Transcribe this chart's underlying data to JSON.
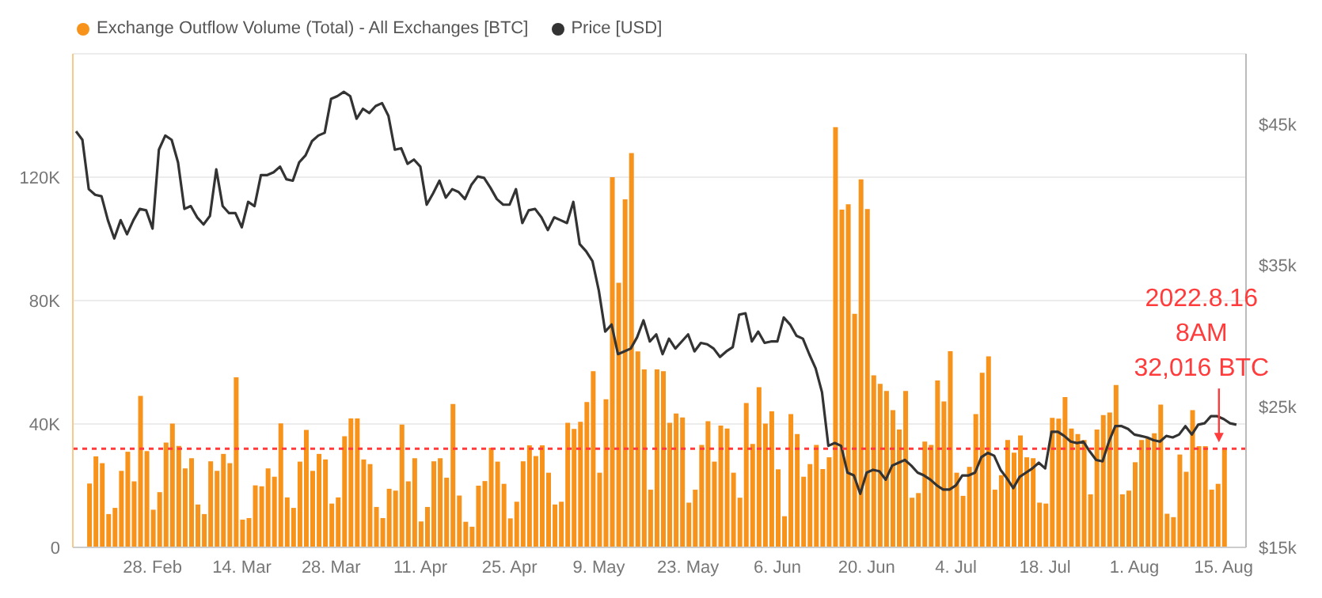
{
  "chart_data": {
    "type": "bar",
    "legend": "top left",
    "grid": "y",
    "xlim": [
      "2022-02-15T12:00",
      "2022-08-18T12:00"
    ],
    "xticks": [
      {
        "value": "2022-02-28",
        "label": "28. Feb"
      },
      {
        "value": "2022-03-14",
        "label": "14. Mar"
      },
      {
        "value": "2022-03-28",
        "label": "28. Mar"
      },
      {
        "value": "2022-04-11",
        "label": "11. Apr"
      },
      {
        "value": "2022-04-25",
        "label": "25. Apr"
      },
      {
        "value": "2022-05-09",
        "label": "9. May"
      },
      {
        "value": "2022-05-23",
        "label": "23. May"
      },
      {
        "value": "2022-06-06",
        "label": "6. Jun"
      },
      {
        "value": "2022-06-20",
        "label": "20. Jun"
      },
      {
        "value": "2022-07-04",
        "label": "4. Jul"
      },
      {
        "value": "2022-07-18",
        "label": "18. Jul"
      },
      {
        "value": "2022-08-01",
        "label": "1. Aug"
      },
      {
        "value": "2022-08-15",
        "label": "15. Aug"
      }
    ],
    "ylim": [
      0,
      160000
    ],
    "yticks": [
      0,
      {
        "value": 40000,
        "label": "40K"
      },
      {
        "value": 80000,
        "label": "80K"
      },
      {
        "value": 120000,
        "label": "120K"
      }
    ],
    "y2lim": [
      15000,
      50000
    ],
    "y2ticks": [
      {
        "value": 15000,
        "label": "$15k"
      },
      {
        "value": 25000,
        "label": "$25k"
      },
      {
        "value": 35000,
        "label": "$35k"
      },
      {
        "value": 45000,
        "label": "$45k"
      }
    ],
    "ref_lines": [
      {
        "axis": "y",
        "value": 32016,
        "color": "#ff3b3b",
        "line_style": "dotted"
      }
    ],
    "annotations": [
      {
        "text": "2022.8.16\n8AM\n32,016 BTC",
        "x": "2022-08-15",
        "y": 32016
      }
    ],
    "series": [
      {
        "name": "Exchange Outflow Volume (Total) - All Exchanges [BTC]",
        "color": "#f7931a",
        "axis": "y",
        "x": [
          "2022-02-18",
          "2022-02-19",
          "2022-02-20",
          "2022-02-21",
          "2022-02-22",
          "2022-02-23",
          "2022-02-24",
          "2022-02-25",
          "2022-02-26",
          "2022-02-27",
          "2022-02-28",
          "2022-03-01",
          "2022-03-02",
          "2022-03-03",
          "2022-03-04",
          "2022-03-05",
          "2022-03-06",
          "2022-03-07",
          "2022-03-08",
          "2022-03-09",
          "2022-03-10",
          "2022-03-11",
          "2022-03-12",
          "2022-03-13",
          "2022-03-14",
          "2022-03-15",
          "2022-03-16",
          "2022-03-17",
          "2022-03-18",
          "2022-03-19",
          "2022-03-20",
          "2022-03-21",
          "2022-03-22",
          "2022-03-23",
          "2022-03-24",
          "2022-03-25",
          "2022-03-26",
          "2022-03-27",
          "2022-03-28",
          "2022-03-29",
          "2022-03-30",
          "2022-03-31",
          "2022-04-01",
          "2022-04-02",
          "2022-04-03",
          "2022-04-04",
          "2022-04-05",
          "2022-04-06",
          "2022-04-07",
          "2022-04-08",
          "2022-04-09",
          "2022-04-10",
          "2022-04-11",
          "2022-04-12",
          "2022-04-13",
          "2022-04-14",
          "2022-04-15",
          "2022-04-16",
          "2022-04-17",
          "2022-04-18",
          "2022-04-19",
          "2022-04-20",
          "2022-04-21",
          "2022-04-22",
          "2022-04-23",
          "2022-04-24",
          "2022-04-25",
          "2022-04-26",
          "2022-04-27",
          "2022-04-28",
          "2022-04-29",
          "2022-04-30",
          "2022-05-01",
          "2022-05-02",
          "2022-05-03",
          "2022-05-04",
          "2022-05-05",
          "2022-05-06",
          "2022-05-07",
          "2022-05-08",
          "2022-05-09",
          "2022-05-10",
          "2022-05-11",
          "2022-05-12",
          "2022-05-13",
          "2022-05-14",
          "2022-05-15",
          "2022-05-16",
          "2022-05-17",
          "2022-05-18",
          "2022-05-19",
          "2022-05-20",
          "2022-05-21",
          "2022-05-22",
          "2022-05-23",
          "2022-05-24",
          "2022-05-25",
          "2022-05-26",
          "2022-05-27",
          "2022-05-28",
          "2022-05-29",
          "2022-05-30",
          "2022-05-31",
          "2022-06-01",
          "2022-06-02",
          "2022-06-03",
          "2022-06-04",
          "2022-06-05",
          "2022-06-06",
          "2022-06-07",
          "2022-06-08",
          "2022-06-09",
          "2022-06-10",
          "2022-06-11",
          "2022-06-12",
          "2022-06-13",
          "2022-06-14",
          "2022-06-15",
          "2022-06-16",
          "2022-06-17",
          "2022-06-18",
          "2022-06-19",
          "2022-06-20",
          "2022-06-21",
          "2022-06-22",
          "2022-06-23",
          "2022-06-24",
          "2022-06-25",
          "2022-06-26",
          "2022-06-27",
          "2022-06-28",
          "2022-06-29",
          "2022-06-30",
          "2022-07-01",
          "2022-07-02",
          "2022-07-03",
          "2022-07-04",
          "2022-07-05",
          "2022-07-06",
          "2022-07-07",
          "2022-07-08",
          "2022-07-09",
          "2022-07-10",
          "2022-07-11",
          "2022-07-12",
          "2022-07-13",
          "2022-07-14",
          "2022-07-15",
          "2022-07-16",
          "2022-07-17",
          "2022-07-18",
          "2022-07-19",
          "2022-07-20",
          "2022-07-21",
          "2022-07-22",
          "2022-07-23",
          "2022-07-24",
          "2022-07-25",
          "2022-07-26",
          "2022-07-27",
          "2022-07-28",
          "2022-07-29",
          "2022-07-30",
          "2022-07-31",
          "2022-08-01",
          "2022-08-02",
          "2022-08-03",
          "2022-08-04",
          "2022-08-05",
          "2022-08-06",
          "2022-08-07",
          "2022-08-08",
          "2022-08-09",
          "2022-08-10",
          "2022-08-11",
          "2022-08-12",
          "2022-08-13",
          "2022-08-14",
          "2022-08-15"
        ],
        "values": [
          20700,
          29500,
          27300,
          10800,
          12800,
          24800,
          31000,
          21400,
          49100,
          31200,
          12200,
          17900,
          34000,
          40100,
          32900,
          25600,
          28900,
          13900,
          10800,
          27900,
          24800,
          30300,
          27300,
          55100,
          9000,
          9500,
          20100,
          19800,
          25600,
          22900,
          40200,
          16200,
          12800,
          27800,
          38100,
          24800,
          30300,
          28500,
          14200,
          16200,
          36000,
          41800,
          41800,
          28500,
          27000,
          13100,
          9500,
          19000,
          18400,
          39800,
          21400,
          28900,
          8400,
          13100,
          27900,
          28900,
          22600,
          46500,
          16800,
          8300,
          6700,
          20000,
          21500,
          32300,
          27800,
          20600,
          9400,
          14800,
          27900,
          33100,
          29600,
          33100,
          24200,
          13900,
          14800,
          40400,
          38400,
          40700,
          47100,
          57100,
          24200,
          48000,
          120000,
          85800,
          112800,
          127800,
          63500,
          57700,
          18700,
          57700,
          57100,
          40400,
          43400,
          42100,
          14500,
          18700,
          33200,
          40900,
          27800,
          39500,
          38500,
          24200,
          16100,
          46800,
          33500,
          51900,
          40100,
          44100,
          25300,
          10100,
          43200,
          36700,
          22900,
          27000,
          33200,
          25400,
          29200,
          136200,
          109500,
          111200,
          75700,
          119300,
          109700,
          55800,
          53000,
          50700,
          44500,
          38200,
          50700,
          16100,
          17600,
          34300,
          33200,
          54100,
          47300,
          63600,
          24200,
          16700,
          26100,
          43200,
          56600,
          61900,
          18700,
          23400,
          34800,
          30700,
          36300,
          29200,
          28900,
          14500,
          14200,
          42000,
          41700,
          48700,
          38500,
          36700,
          34800,
          17200,
          38200,
          42900,
          43700,
          52600,
          17200,
          18400,
          27600,
          34800,
          35400,
          37000,
          46300,
          10900,
          9800,
          30100,
          24500,
          44500,
          32800,
          32800,
          18700,
          20600,
          32016
        ]
      },
      {
        "type": "line",
        "name": "Price [USD]",
        "color": "#333333",
        "axis": "y2",
        "x": [
          "2022-02-16",
          "2022-02-17",
          "2022-02-18",
          "2022-02-19",
          "2022-02-20",
          "2022-02-21",
          "2022-02-22",
          "2022-02-23",
          "2022-02-24",
          "2022-02-25",
          "2022-02-26",
          "2022-02-27",
          "2022-02-28",
          "2022-03-01",
          "2022-03-02",
          "2022-03-03",
          "2022-03-04",
          "2022-03-05",
          "2022-03-06",
          "2022-03-07",
          "2022-03-08",
          "2022-03-09",
          "2022-03-10",
          "2022-03-11",
          "2022-03-12",
          "2022-03-13",
          "2022-03-14",
          "2022-03-15",
          "2022-03-16",
          "2022-03-17",
          "2022-03-18",
          "2022-03-19",
          "2022-03-20",
          "2022-03-21",
          "2022-03-22",
          "2022-03-23",
          "2022-03-24",
          "2022-03-25",
          "2022-03-26",
          "2022-03-27",
          "2022-03-28",
          "2022-03-29",
          "2022-03-30",
          "2022-03-31",
          "2022-04-01",
          "2022-04-02",
          "2022-04-03",
          "2022-04-04",
          "2022-04-05",
          "2022-04-06",
          "2022-04-07",
          "2022-04-08",
          "2022-04-09",
          "2022-04-10",
          "2022-04-11",
          "2022-04-12",
          "2022-04-13",
          "2022-04-14",
          "2022-04-15",
          "2022-04-16",
          "2022-04-17",
          "2022-04-18",
          "2022-04-19",
          "2022-04-20",
          "2022-04-21",
          "2022-04-22",
          "2022-04-23",
          "2022-04-24",
          "2022-04-25",
          "2022-04-26",
          "2022-04-27",
          "2022-04-28",
          "2022-04-29",
          "2022-04-30",
          "2022-05-01",
          "2022-05-02",
          "2022-05-03",
          "2022-05-04",
          "2022-05-05",
          "2022-05-06",
          "2022-05-07",
          "2022-05-08",
          "2022-05-09",
          "2022-05-10",
          "2022-05-11",
          "2022-05-12",
          "2022-05-13",
          "2022-05-14",
          "2022-05-15",
          "2022-05-16",
          "2022-05-17",
          "2022-05-18",
          "2022-05-19",
          "2022-05-20",
          "2022-05-21",
          "2022-05-22",
          "2022-05-23",
          "2022-05-24",
          "2022-05-25",
          "2022-05-26",
          "2022-05-27",
          "2022-05-28",
          "2022-05-29",
          "2022-05-30",
          "2022-05-31",
          "2022-06-01",
          "2022-06-02",
          "2022-06-03",
          "2022-06-04",
          "2022-06-05",
          "2022-06-06",
          "2022-06-07",
          "2022-06-08",
          "2022-06-09",
          "2022-06-10",
          "2022-06-11",
          "2022-06-12",
          "2022-06-13",
          "2022-06-14",
          "2022-06-15",
          "2022-06-16",
          "2022-06-17",
          "2022-06-18",
          "2022-06-19",
          "2022-06-20",
          "2022-06-21",
          "2022-06-22",
          "2022-06-23",
          "2022-06-24",
          "2022-06-25",
          "2022-06-26",
          "2022-06-27",
          "2022-06-28",
          "2022-06-29",
          "2022-06-30",
          "2022-07-01",
          "2022-07-02",
          "2022-07-03",
          "2022-07-04",
          "2022-07-05",
          "2022-07-06",
          "2022-07-07",
          "2022-07-08",
          "2022-07-09",
          "2022-07-10",
          "2022-07-11",
          "2022-07-12",
          "2022-07-13",
          "2022-07-14",
          "2022-07-15",
          "2022-07-16",
          "2022-07-17",
          "2022-07-18",
          "2022-07-19",
          "2022-07-20",
          "2022-07-21",
          "2022-07-22",
          "2022-07-23",
          "2022-07-24",
          "2022-07-25",
          "2022-07-26",
          "2022-07-27",
          "2022-07-28",
          "2022-07-29",
          "2022-07-30",
          "2022-07-31",
          "2022-08-01",
          "2022-08-02",
          "2022-08-03",
          "2022-08-04",
          "2022-08-05",
          "2022-08-06",
          "2022-08-07",
          "2022-08-08",
          "2022-08-09",
          "2022-08-10",
          "2022-08-11",
          "2022-08-12",
          "2022-08-13",
          "2022-08-14",
          "2022-08-15",
          "2022-08-16",
          "2022-08-17"
        ],
        "values": [
          44500,
          43900,
          40400,
          40000,
          39900,
          38200,
          36900,
          38200,
          37200,
          38200,
          39000,
          38900,
          37600,
          43200,
          44200,
          43900,
          42300,
          39000,
          39200,
          38400,
          37900,
          38500,
          41800,
          39200,
          38700,
          38700,
          37700,
          39500,
          39200,
          41400,
          41400,
          41600,
          42000,
          41100,
          41000,
          42300,
          42800,
          43800,
          44200,
          44400,
          46800,
          47000,
          47300,
          47000,
          45400,
          46100,
          45800,
          46300,
          46500,
          45600,
          43200,
          43300,
          42200,
          42500,
          42000,
          39300,
          40100,
          41000,
          39800,
          40400,
          40200,
          39700,
          40700,
          41300,
          41200,
          40500,
          39700,
          39300,
          39300,
          40400,
          38000,
          38900,
          39000,
          38400,
          37500,
          38400,
          38200,
          38000,
          39500,
          36500,
          36000,
          35300,
          33200,
          30300,
          30800,
          28700,
          28900,
          29100,
          29900,
          31100,
          29600,
          30100,
          28700,
          29800,
          29100,
          29600,
          30100,
          28900,
          29500,
          29400,
          29100,
          28500,
          28900,
          29200,
          31500,
          31600,
          29600,
          30300,
          29500,
          29600,
          29600,
          31300,
          30800,
          30000,
          29800,
          28700,
          27700,
          26000,
          22200,
          22400,
          22200,
          20300,
          20100,
          18800,
          20300,
          20500,
          20400,
          19800,
          20800,
          21000,
          21200,
          20800,
          20300,
          20100,
          19800,
          19400,
          19100,
          19100,
          19400,
          20100,
          20100,
          20300,
          21400,
          21700,
          21500,
          20500,
          19900,
          19200,
          20000,
          20300,
          20600,
          21000,
          20600,
          23200,
          23200,
          22900,
          22500,
          22400,
          22500,
          21800,
          21200,
          21100,
          22500,
          23600,
          23600,
          23400,
          23000,
          22900,
          22800,
          22600,
          22500,
          22900,
          22800,
          23000,
          23600,
          23000,
          23700,
          23800,
          24300,
          24300,
          24100,
          23800,
          23700
        ]
      }
    ]
  }
}
